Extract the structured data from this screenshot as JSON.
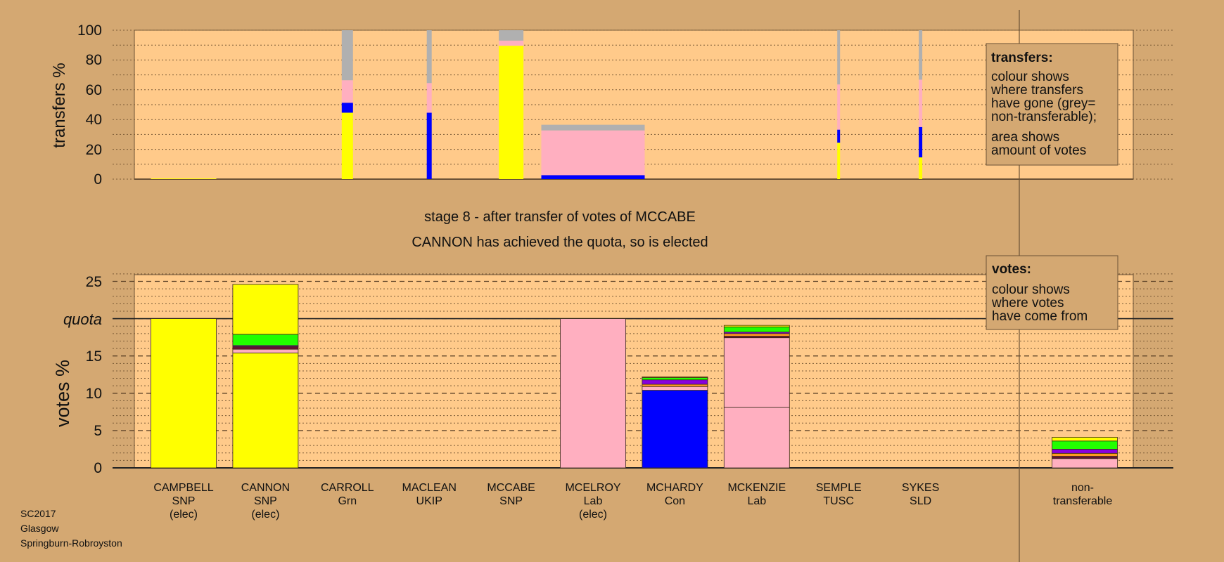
{
  "colors": {
    "background": "#d4a872",
    "plot_background": "#ffca8a",
    "yellow": "#ffff00",
    "blue": "#0000ff",
    "pink": "#ffafc0",
    "grey": "#b0b0b0",
    "green": "#22ff00",
    "purple": "#8800dd",
    "orange": "#ff9922",
    "maroon": "#661133"
  },
  "footer": {
    "line1": "SC2017",
    "line2": "Glasgow",
    "line3": "Springburn-Robroyston"
  },
  "chart_data": [
    {
      "type": "bar",
      "stacked": true,
      "ylabel": "transfers %",
      "ylim": [
        0,
        100
      ],
      "yticks": [
        "0",
        "20",
        "40",
        "60",
        "80",
        "100"
      ],
      "legend": {
        "title": "transfers:",
        "line1": "colour shows",
        "line2": "where transfers",
        "line3": "have gone (grey=",
        "line4": "non-transferable);",
        "line5": "area shows",
        "line6": "amount of votes"
      },
      "bars": [
        {
          "candidate": 0,
          "amount": 93,
          "segments": [
            {
              "c": "yellow",
              "v": 0.5
            }
          ]
        },
        {
          "candidate": 2,
          "amount": 16,
          "segments": [
            {
              "c": "yellow",
              "v": 44.6
            },
            {
              "c": "blue",
              "v": 6.7
            },
            {
              "c": "pink",
              "v": 15.1
            },
            {
              "c": "grey",
              "v": 33.6
            }
          ]
        },
        {
          "candidate": 3,
          "amount": 7,
          "segments": [
            {
              "c": "blue",
              "v": 44.6
            },
            {
              "c": "pink",
              "v": 19.9
            },
            {
              "c": "grey",
              "v": 35.5
            }
          ]
        },
        {
          "candidate": 4,
          "amount": 35,
          "segments": [
            {
              "c": "yellow",
              "v": 89.6
            },
            {
              "c": "pink",
              "v": 3.4
            },
            {
              "c": "grey",
              "v": 7.0
            }
          ]
        },
        {
          "candidate": 5,
          "amount": 147,
          "segments": [
            {
              "c": "blue",
              "v": 2.7
            },
            {
              "c": "pink",
              "v": 30.0
            },
            {
              "c": "grey",
              "v": 3.8
            }
          ]
        },
        {
          "candidate": 8,
          "amount": 4,
          "segments": [
            {
              "c": "yellow",
              "v": 24.5
            },
            {
              "c": "blue",
              "v": 8.7
            },
            {
              "c": "pink",
              "v": 30.4
            },
            {
              "c": "grey",
              "v": 36.4
            }
          ]
        },
        {
          "candidate": 9,
          "amount": 5,
          "segments": [
            {
              "c": "yellow",
              "v": 14.6
            },
            {
              "c": "blue",
              "v": 20.4
            },
            {
              "c": "pink",
              "v": 31.8
            },
            {
              "c": "grey",
              "v": 33.2
            }
          ]
        }
      ]
    },
    {
      "type": "bar",
      "stacked": true,
      "title": "stage 8 - after transfer of votes of MCCABE",
      "subtitle": "CANNON has achieved the quota, so is elected",
      "ylabel": "votes %",
      "ylim": [
        0,
        26
      ],
      "yticks": [
        "0",
        "5",
        "10",
        "15",
        "20",
        "25"
      ],
      "quota": 20,
      "quota_label": "quota",
      "legend": {
        "title": "votes:",
        "line1": "colour shows",
        "line2": "where votes",
        "line3": "have come from"
      },
      "candidates": [
        {
          "name": "CAMPBELL",
          "party": "SNP",
          "status": "(elec)",
          "segments": [
            {
              "c": "yellow",
              "v": 20
            }
          ]
        },
        {
          "name": "CANNON",
          "party": "SNP",
          "status": "(elec)",
          "segments": [
            {
              "c": "yellow",
              "v": 15.4
            },
            {
              "c": "pink",
              "v": 0.5
            },
            {
              "c": "maroon",
              "v": 0.35
            },
            {
              "c": "purple",
              "v": 0.15
            },
            {
              "c": "green",
              "v": 1.5
            },
            {
              "c": "yellow",
              "v": 6.7
            }
          ]
        },
        {
          "name": "CARROLL",
          "party": "Grn",
          "status": "",
          "segments": []
        },
        {
          "name": "MACLEAN",
          "party": "UKIP",
          "status": "",
          "segments": []
        },
        {
          "name": "MCCABE",
          "party": "SNP",
          "status": "",
          "segments": []
        },
        {
          "name": "MCELROY",
          "party": "Lab",
          "status": "(elec)",
          "segments": [
            {
              "c": "pink",
              "v": 20
            }
          ]
        },
        {
          "name": "MCHARDY",
          "party": "Con",
          "status": "",
          "segments": [
            {
              "c": "blue",
              "v": 10.4
            },
            {
              "c": "pink",
              "v": 0.5
            },
            {
              "c": "orange",
              "v": 0.3
            },
            {
              "c": "purple",
              "v": 0.6
            },
            {
              "c": "green",
              "v": 0.3
            },
            {
              "c": "yellow",
              "v": 0.1
            }
          ]
        },
        {
          "name": "MCKENZIE",
          "party": "Lab",
          "status": "",
          "segments": [
            {
              "c": "pink",
              "v": 8.1
            },
            {
              "c": "pink",
              "v": 9.35
            },
            {
              "c": "maroon",
              "v": 0.2
            },
            {
              "c": "orange",
              "v": 0.35
            },
            {
              "c": "purple",
              "v": 0.2
            },
            {
              "c": "green",
              "v": 0.7
            },
            {
              "c": "yellow",
              "v": 0.2
            }
          ]
        },
        {
          "name": "SEMPLE",
          "party": "TUSC",
          "status": "",
          "segments": []
        },
        {
          "name": "SYKES",
          "party": "SLD",
          "status": "",
          "segments": []
        }
      ],
      "nontransferable": {
        "label1": "non-",
        "label2": "transferable",
        "segments": [
          {
            "c": "pink",
            "v": 1.25
          },
          {
            "c": "maroon",
            "v": 0.3
          },
          {
            "c": "orange",
            "v": 0.4
          },
          {
            "c": "purple",
            "v": 0.55
          },
          {
            "c": "green",
            "v": 1.1
          },
          {
            "c": "yellow",
            "v": 0.5
          }
        ]
      }
    }
  ]
}
